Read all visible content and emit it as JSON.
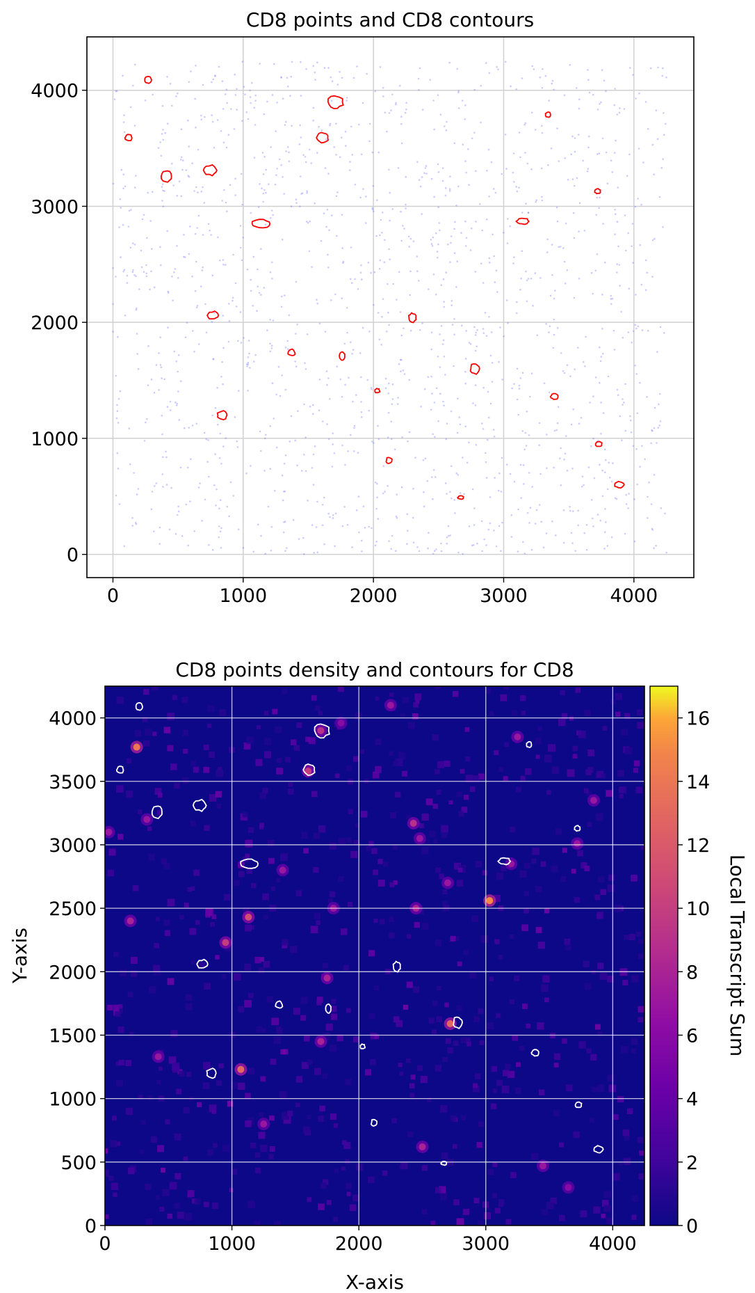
{
  "chart_data": [
    {
      "type": "scatter",
      "title": "CD8 points and CD8 contours",
      "xlabel": "",
      "ylabel": "",
      "xlim": [
        -200,
        4460
      ],
      "ylim": [
        -200,
        4460
      ],
      "x_ticks": [
        0,
        1000,
        2000,
        3000,
        4000
      ],
      "y_ticks": [
        0,
        1000,
        2000,
        3000,
        4000
      ],
      "grid": true,
      "point_color": "#6a6aff",
      "contour_color": "#ff0000",
      "contours": [
        {
          "x": 270,
          "y": 4090,
          "w": 60,
          "h": 70
        },
        {
          "x": 1710,
          "y": 3900,
          "w": 120,
          "h": 120
        },
        {
          "x": 3340,
          "y": 3790,
          "w": 45,
          "h": 45
        },
        {
          "x": 120,
          "y": 3590,
          "w": 60,
          "h": 60
        },
        {
          "x": 1610,
          "y": 3590,
          "w": 90,
          "h": 90
        },
        {
          "x": 410,
          "y": 3260,
          "w": 90,
          "h": 110
        },
        {
          "x": 750,
          "y": 3310,
          "w": 110,
          "h": 90
        },
        {
          "x": 3720,
          "y": 3130,
          "w": 50,
          "h": 45
        },
        {
          "x": 1140,
          "y": 2850,
          "w": 150,
          "h": 80
        },
        {
          "x": 3150,
          "y": 2870,
          "w": 100,
          "h": 55
        },
        {
          "x": 2300,
          "y": 2040,
          "w": 60,
          "h": 80
        },
        {
          "x": 770,
          "y": 2060,
          "w": 90,
          "h": 70
        },
        {
          "x": 1370,
          "y": 1740,
          "w": 60,
          "h": 60
        },
        {
          "x": 1760,
          "y": 1710,
          "w": 45,
          "h": 75
        },
        {
          "x": 2780,
          "y": 1600,
          "w": 80,
          "h": 90
        },
        {
          "x": 2030,
          "y": 1410,
          "w": 40,
          "h": 40
        },
        {
          "x": 3390,
          "y": 1360,
          "w": 60,
          "h": 50
        },
        {
          "x": 840,
          "y": 1200,
          "w": 80,
          "h": 80
        },
        {
          "x": 3730,
          "y": 950,
          "w": 50,
          "h": 50
        },
        {
          "x": 2120,
          "y": 810,
          "w": 50,
          "h": 55
        },
        {
          "x": 3890,
          "y": 600,
          "w": 80,
          "h": 60
        },
        {
          "x": 2670,
          "y": 490,
          "w": 45,
          "h": 30
        }
      ]
    },
    {
      "type": "heatmap",
      "title": "CD8 points density and contours for CD8",
      "xlabel": "X-axis",
      "ylabel": "Y-axis",
      "xlim": [
        0,
        4250
      ],
      "ylim": [
        0,
        4250
      ],
      "x_ticks": [
        0,
        1000,
        2000,
        3000,
        4000
      ],
      "y_ticks": [
        0,
        500,
        1000,
        1500,
        2000,
        2500,
        3000,
        3500,
        4000
      ],
      "grid": true,
      "colormap": "plasma",
      "background_color": "#0d0887",
      "contour_color": "#ffffff",
      "colorbar": {
        "label": "Local Transcript Sum",
        "min": 0,
        "max": 17,
        "ticks": [
          0,
          2,
          4,
          6,
          8,
          10,
          12,
          14,
          16
        ]
      },
      "hotspots": [
        {
          "x": 250,
          "y": 3770,
          "v": 14
        },
        {
          "x": 3030,
          "y": 2560,
          "v": 15
        },
        {
          "x": 2720,
          "y": 1590,
          "v": 13
        },
        {
          "x": 1070,
          "y": 1230,
          "v": 13
        },
        {
          "x": 1130,
          "y": 2430,
          "v": 11
        },
        {
          "x": 950,
          "y": 2230,
          "v": 10
        },
        {
          "x": 2430,
          "y": 3170,
          "v": 9
        },
        {
          "x": 1700,
          "y": 1450,
          "v": 8
        },
        {
          "x": 1600,
          "y": 3580,
          "v": 10
        },
        {
          "x": 1700,
          "y": 3900,
          "v": 9
        },
        {
          "x": 200,
          "y": 2400,
          "v": 8
        },
        {
          "x": 3250,
          "y": 3850,
          "v": 7
        },
        {
          "x": 1750,
          "y": 1950,
          "v": 8
        },
        {
          "x": 3850,
          "y": 3350,
          "v": 7
        },
        {
          "x": 2500,
          "y": 620,
          "v": 8
        },
        {
          "x": 3450,
          "y": 470,
          "v": 7
        },
        {
          "x": 2250,
          "y": 4100,
          "v": 7
        },
        {
          "x": 2450,
          "y": 2500,
          "v": 8
        },
        {
          "x": 2700,
          "y": 2700,
          "v": 7
        },
        {
          "x": 1250,
          "y": 800,
          "v": 7
        },
        {
          "x": 1400,
          "y": 2800,
          "v": 7
        },
        {
          "x": 420,
          "y": 1330,
          "v": 7
        },
        {
          "x": 3720,
          "y": 3010,
          "v": 7
        },
        {
          "x": 1800,
          "y": 2500,
          "v": 7
        },
        {
          "x": 330,
          "y": 3200,
          "v": 7
        },
        {
          "x": 2480,
          "y": 3050,
          "v": 7
        },
        {
          "x": 1860,
          "y": 3960,
          "v": 6
        },
        {
          "x": 30,
          "y": 3100,
          "v": 7
        },
        {
          "x": 3200,
          "y": 2850,
          "v": 7
        },
        {
          "x": 3650,
          "y": 300,
          "v": 6
        }
      ]
    }
  ]
}
